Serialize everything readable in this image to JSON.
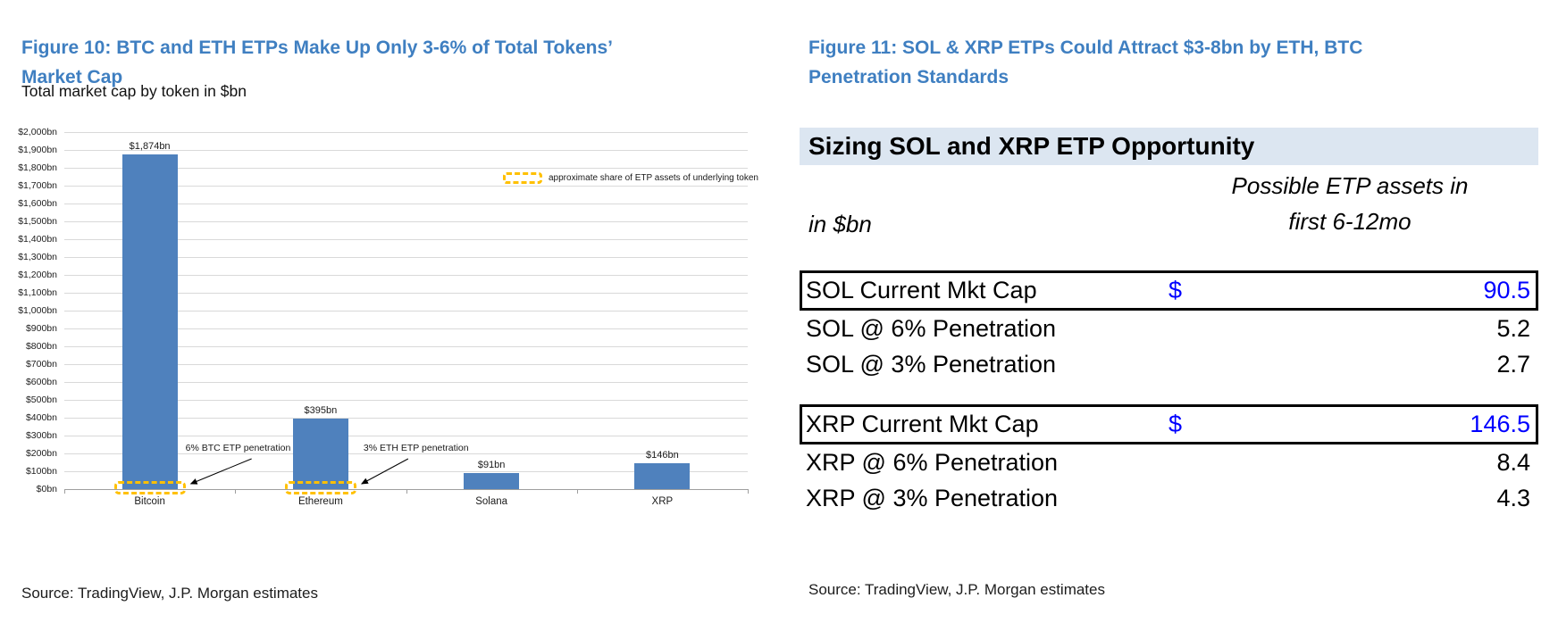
{
  "figure10": {
    "title": "Figure 10: BTC and ETH ETPs Make Up Only 3-6% of Total Tokens’ Market Cap",
    "subtitle": "Total market cap by token in $bn",
    "source": "Source: TradingView, J.P. Morgan estimates"
  },
  "figure11": {
    "title": "Figure 11: SOL & XRP ETPs Could Attract $3-8bn by ETH, BTC Penetration Standards",
    "source": "Source: TradingView, J.P. Morgan estimates"
  },
  "chart_data": [
    {
      "type": "bar",
      "title": "Total market cap by token in $bn",
      "categories": [
        "Bitcoin",
        "Ethereum",
        "Solana",
        "XRP"
      ],
      "values": [
        1874,
        395,
        91,
        146
      ],
      "data_labels": [
        "$1,874bn",
        "$395bn",
        "$91bn",
        "$146bn"
      ],
      "xlabel": "",
      "ylabel": "",
      "ylim": [
        0,
        2000
      ],
      "ytick_step": 100,
      "ytick_format": "$#,##0bn",
      "grid": true,
      "bar_color": "#4F81BD",
      "etp_box_color": "#FFC000",
      "legend": {
        "label": "approximate share of ETP assets of underlying token",
        "swatch": "dashed-box",
        "position": "inside-top-right"
      },
      "annotations": [
        {
          "text": "6% BTC ETP penetration",
          "category": "Bitcoin"
        },
        {
          "text": "3% ETH ETP penetration",
          "category": "Ethereum"
        }
      ]
    },
    {
      "type": "table",
      "title": "Sizing SOL and XRP ETP Opportunity",
      "unit_label": "in $bn",
      "value_header": "Possible ETP assets in first 6-12mo",
      "value_header_lines": [
        "Possible ETP assets in",
        "first 6-12mo"
      ],
      "rows": [
        {
          "label": "SOL Current Mkt Cap",
          "currency": "$",
          "value": "90.5",
          "boxed": true,
          "highlight": true
        },
        {
          "label": "SOL @ 6% Penetration",
          "currency": "",
          "value": "5.2",
          "boxed": false,
          "highlight": false
        },
        {
          "label": "SOL @ 3% Penetration",
          "currency": "",
          "value": "2.7",
          "boxed": false,
          "highlight": false
        },
        {
          "spacer": true
        },
        {
          "label": "XRP Current Mkt Cap",
          "currency": "$",
          "value": "146.5",
          "boxed": true,
          "highlight": true
        },
        {
          "label": "XRP @ 6% Penetration",
          "currency": "",
          "value": "8.4",
          "boxed": false,
          "highlight": false
        },
        {
          "label": "XRP @ 3% Penetration",
          "currency": "",
          "value": "4.3",
          "boxed": false,
          "highlight": false
        }
      ]
    }
  ],
  "colors": {
    "figure_title_blue": "#3F7FC1",
    "bar_blue": "#4F81BD",
    "etp_dash_yellow": "#FFC000",
    "table_header_bg": "#DCE6F1",
    "highlight_value_blue": "#0000FF"
  }
}
